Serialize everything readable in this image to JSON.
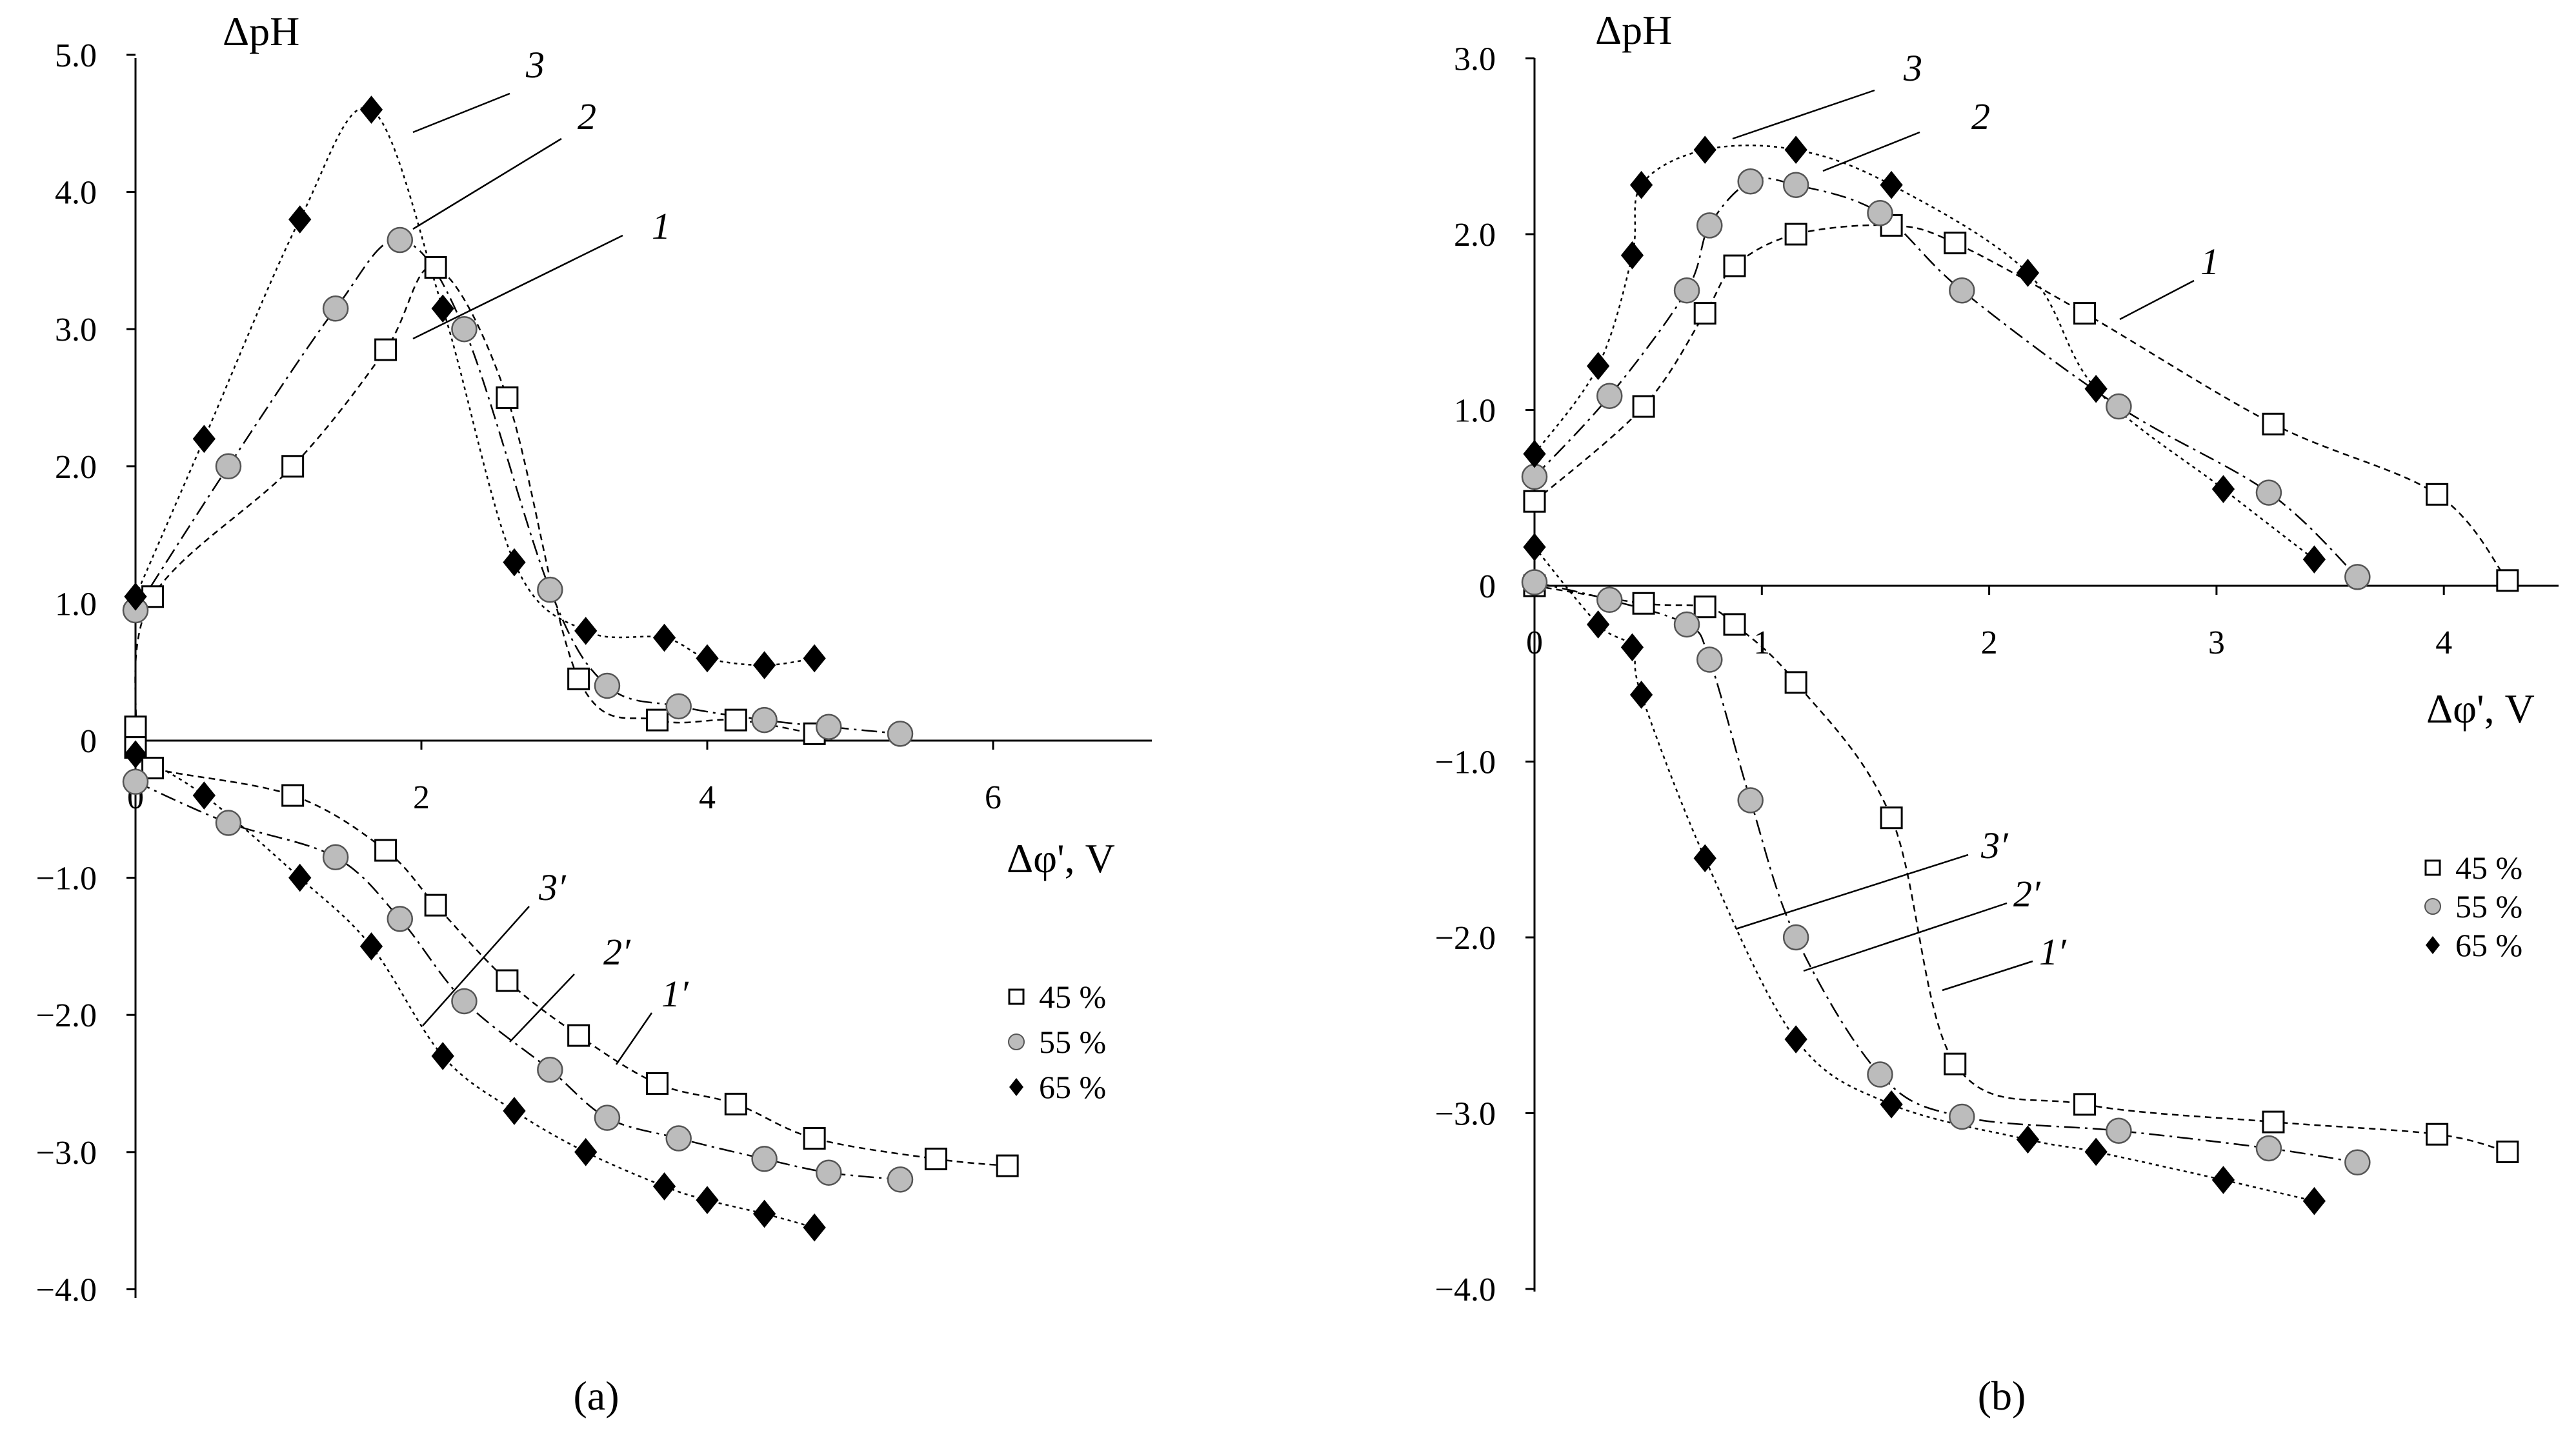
{
  "chart_data": [
    {
      "panel_label": "(a)",
      "type": "scatter",
      "ylabel": "ΔpH",
      "xlabel": "Δφ', V",
      "xlim": [
        0,
        7.1
      ],
      "ylim": [
        -4.0,
        5.0
      ],
      "x_ticks": [
        {
          "value": 0,
          "label": "0"
        },
        {
          "value": 2,
          "label": "2"
        },
        {
          "value": 4,
          "label": "4"
        },
        {
          "value": 6,
          "label": "6"
        }
      ],
      "y_ticks": [
        {
          "value": 5,
          "label": "5.0"
        },
        {
          "value": 4,
          "label": "4.0"
        },
        {
          "value": 3,
          "label": "3.0"
        },
        {
          "value": 2,
          "label": "2.0"
        },
        {
          "value": 1,
          "label": "1.0"
        },
        {
          "value": 0,
          "label": "0"
        },
        {
          "value": -1,
          "label": "−1.0"
        },
        {
          "value": -2,
          "label": "−2.0"
        },
        {
          "value": -3,
          "label": "−3.0"
        },
        {
          "value": -4,
          "label": "−4.0"
        }
      ],
      "legend_position": "right",
      "series": [
        {
          "name": "45 %",
          "marker": "square-open",
          "branch": "upper",
          "curve_label": "1",
          "x": [
            0,
            0.12,
            1.1,
            1.75,
            2.1,
            2.6,
            3.1,
            3.65,
            4.2,
            4.75
          ],
          "y": [
            0.1,
            1.05,
            2.0,
            2.85,
            3.45,
            2.5,
            0.45,
            0.15,
            0.15,
            0.05
          ]
        },
        {
          "name": "45 %",
          "marker": "square-open",
          "branch": "lower",
          "curve_label": "1′",
          "x": [
            0,
            0.12,
            1.1,
            1.75,
            2.1,
            2.6,
            3.1,
            3.65,
            4.2,
            4.75,
            5.6,
            6.1
          ],
          "y": [
            -0.05,
            -0.2,
            -0.4,
            -0.8,
            -1.2,
            -1.75,
            -2.15,
            -2.5,
            -2.65,
            -2.9,
            -3.05,
            -3.1
          ]
        },
        {
          "name": "55 %",
          "marker": "circle-gray",
          "branch": "upper",
          "curve_label": "2",
          "x": [
            0,
            0.65,
            1.4,
            1.85,
            2.3,
            2.9,
            3.3,
            3.8,
            4.4,
            4.85,
            5.35
          ],
          "y": [
            0.95,
            2.0,
            3.15,
            3.65,
            3.0,
            1.1,
            0.4,
            0.25,
            0.15,
            0.1,
            0.05
          ]
        },
        {
          "name": "55 %",
          "marker": "circle-gray",
          "branch": "lower",
          "curve_label": "2′",
          "x": [
            0,
            0.65,
            1.4,
            1.85,
            2.3,
            2.9,
            3.3,
            3.8,
            4.4,
            4.85,
            5.35
          ],
          "y": [
            -0.3,
            -0.6,
            -0.85,
            -1.3,
            -1.9,
            -2.4,
            -2.75,
            -2.9,
            -3.05,
            -3.15,
            -3.2
          ]
        },
        {
          "name": "65 %",
          "marker": "diamond-filled",
          "branch": "upper",
          "curve_label": "3",
          "x": [
            0,
            0.48,
            1.15,
            1.65,
            2.15,
            2.65,
            3.15,
            3.7,
            4.0,
            4.4,
            4.75
          ],
          "y": [
            1.05,
            2.2,
            3.8,
            4.6,
            3.15,
            1.3,
            0.8,
            0.75,
            0.6,
            0.55,
            0.6
          ]
        },
        {
          "name": "65 %",
          "marker": "diamond-filled",
          "branch": "lower",
          "curve_label": "3′",
          "x": [
            0,
            0.48,
            1.15,
            1.65,
            2.15,
            2.65,
            3.15,
            3.7,
            4.0,
            4.4,
            4.75
          ],
          "y": [
            -0.1,
            -0.4,
            -1.0,
            -1.5,
            -2.3,
            -2.7,
            -3.0,
            -3.25,
            -3.35,
            -3.45,
            -3.55
          ]
        }
      ]
    },
    {
      "panel_label": "(b)",
      "type": "scatter",
      "ylabel": "ΔpH",
      "xlabel": "Δφ', V",
      "xlim": [
        0,
        4.5
      ],
      "ylim": [
        -4.0,
        3.0
      ],
      "x_ticks": [
        {
          "value": 0,
          "label": "0"
        },
        {
          "value": 1,
          "label": "1"
        },
        {
          "value": 2,
          "label": "2"
        },
        {
          "value": 3,
          "label": "3"
        },
        {
          "value": 4,
          "label": "4"
        }
      ],
      "y_ticks": [
        {
          "value": 3,
          "label": "3.0"
        },
        {
          "value": 2,
          "label": "2.0"
        },
        {
          "value": 1,
          "label": "1.0"
        },
        {
          "value": 0,
          "label": "0"
        },
        {
          "value": -1,
          "label": "−1.0"
        },
        {
          "value": -2,
          "label": "−2.0"
        },
        {
          "value": -3,
          "label": "−3.0"
        },
        {
          "value": -4,
          "label": "−4.0"
        }
      ],
      "legend_position": "right",
      "series": [
        {
          "name": "45 %",
          "marker": "square-open",
          "branch": "upper",
          "curve_label": "1",
          "x": [
            0,
            0.48,
            0.75,
            0.88,
            1.15,
            1.57,
            1.85,
            2.42,
            3.25,
            3.97,
            4.28
          ],
          "y": [
            0.48,
            1.02,
            1.55,
            1.82,
            2.0,
            2.05,
            1.95,
            1.55,
            0.92,
            0.52,
            0.03
          ]
        },
        {
          "name": "45 %",
          "marker": "square-open",
          "branch": "lower",
          "curve_label": "1′",
          "x": [
            0,
            0.48,
            0.75,
            0.88,
            1.15,
            1.57,
            1.85,
            2.42,
            3.25,
            3.97,
            4.28
          ],
          "y": [
            0,
            -0.1,
            -0.12,
            -0.22,
            -0.55,
            -1.32,
            -2.72,
            -2.95,
            -3.05,
            -3.12,
            -3.22
          ]
        },
        {
          "name": "55 %",
          "marker": "circle-gray",
          "branch": "upper",
          "curve_label": "2",
          "x": [
            0,
            0.33,
            0.67,
            0.77,
            0.95,
            1.15,
            1.52,
            1.88,
            2.57,
            3.23,
            3.62
          ],
          "y": [
            0.62,
            1.08,
            1.68,
            2.05,
            2.3,
            2.28,
            2.12,
            1.68,
            1.02,
            0.53,
            0.05
          ]
        },
        {
          "name": "55 %",
          "marker": "circle-gray",
          "branch": "lower",
          "curve_label": "2′",
          "x": [
            0,
            0.33,
            0.67,
            0.77,
            0.95,
            1.15,
            1.52,
            1.88,
            2.57,
            3.23,
            3.62
          ],
          "y": [
            0.02,
            -0.08,
            -0.22,
            -0.42,
            -1.22,
            -2.0,
            -2.78,
            -3.02,
            -3.1,
            -3.2,
            -3.28
          ]
        },
        {
          "name": "65 %",
          "marker": "diamond-filled",
          "branch": "upper",
          "curve_label": "3",
          "x": [
            0,
            0.28,
            0.43,
            0.47,
            0.75,
            1.15,
            1.57,
            2.17,
            2.47,
            3.03,
            3.43
          ],
          "y": [
            0.75,
            1.25,
            1.88,
            2.28,
            2.48,
            2.48,
            2.28,
            1.78,
            1.12,
            0.55,
            0.15
          ]
        },
        {
          "name": "65 %",
          "marker": "diamond-filled",
          "branch": "lower",
          "curve_label": "3′",
          "x": [
            0,
            0.28,
            0.43,
            0.47,
            0.75,
            1.15,
            1.57,
            2.17,
            2.47,
            3.03,
            3.43
          ],
          "y": [
            0.22,
            -0.22,
            -0.35,
            -0.62,
            -1.55,
            -2.58,
            -2.95,
            -3.15,
            -3.22,
            -3.38,
            -3.5
          ]
        }
      ]
    }
  ]
}
